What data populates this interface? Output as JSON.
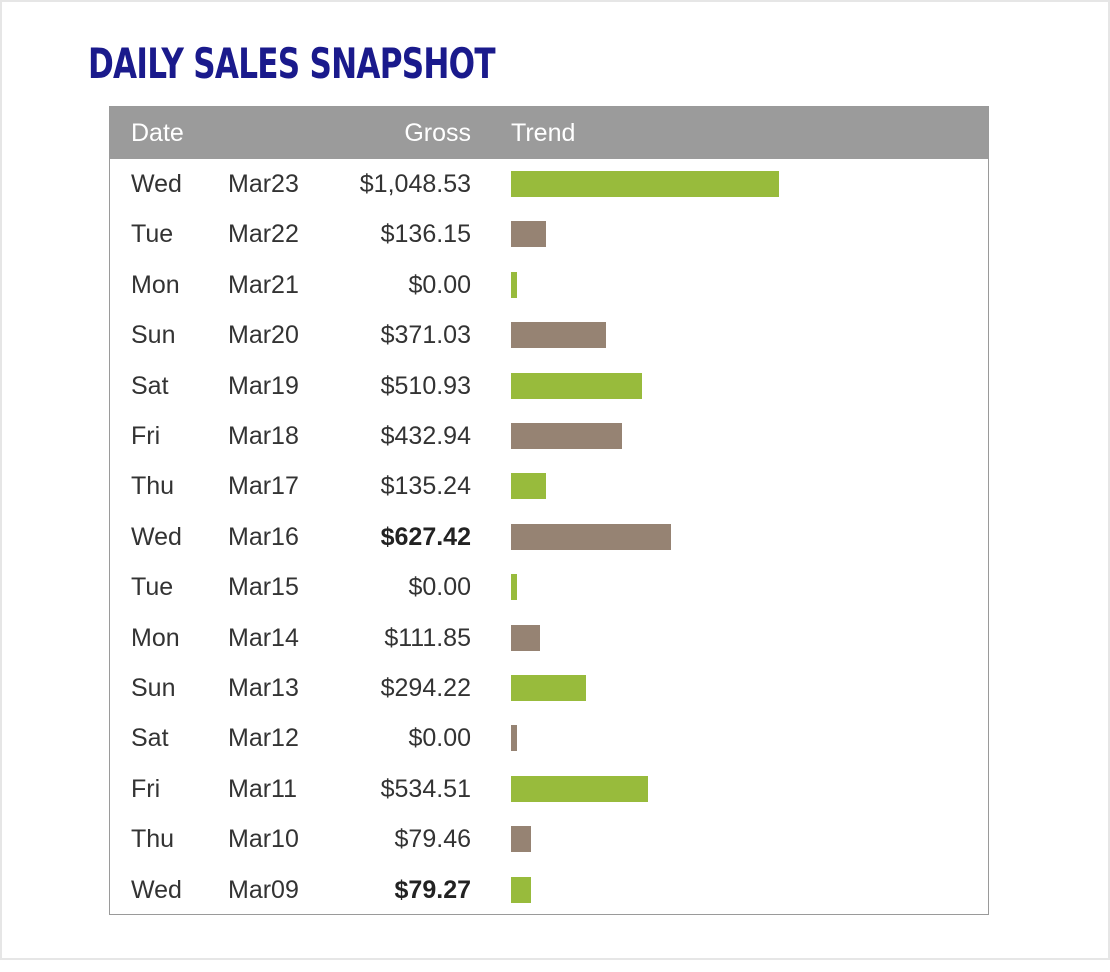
{
  "title": "DAILY SALES SNAPSHOT",
  "headers": {
    "date": "Date",
    "gross": "Gross",
    "trend": "Trend"
  },
  "colors": {
    "title": "#1a1a8c",
    "header_bg": "#9b9b9b",
    "bar_green": "#98bb3c",
    "bar_taupe": "#968373"
  },
  "rows": [
    {
      "day": "Wed",
      "date": "Mar23",
      "gross": "$1,048.53"
    },
    {
      "day": "Tue",
      "date": "Mar22",
      "gross": "$136.15"
    },
    {
      "day": "Mon",
      "date": "Mar21",
      "gross": "$0.00"
    },
    {
      "day": "Sun",
      "date": "Mar20",
      "gross": "$371.03"
    },
    {
      "day": "Sat",
      "date": "Mar19",
      "gross": "$510.93"
    },
    {
      "day": "Fri",
      "date": "Mar18",
      "gross": "$432.94"
    },
    {
      "day": "Thu",
      "date": "Mar17",
      "gross": "$135.24"
    },
    {
      "day": "Wed",
      "date": "Mar16",
      "gross": "$627.42"
    },
    {
      "day": "Tue",
      "date": "Mar15",
      "gross": "$0.00"
    },
    {
      "day": "Mon",
      "date": "Mar14",
      "gross": "$111.85"
    },
    {
      "day": "Sun",
      "date": "Mar13",
      "gross": "$294.22"
    },
    {
      "day": "Sat",
      "date": "Mar12",
      "gross": "$0.00"
    },
    {
      "day": "Fri",
      "date": "Mar11",
      "gross": "$534.51"
    },
    {
      "day": "Thu",
      "date": "Mar10",
      "gross": "$79.46"
    },
    {
      "day": "Wed",
      "date": "Mar09",
      "gross": "$79.27"
    }
  ],
  "chart_data": {
    "type": "bar",
    "title": "DAILY SALES SNAPSHOT",
    "orientation": "horizontal",
    "categories": [
      "Wed Mar23",
      "Tue Mar22",
      "Mon Mar21",
      "Sun Mar20",
      "Sat Mar19",
      "Fri Mar18",
      "Thu Mar17",
      "Wed Mar16",
      "Tue Mar15",
      "Mon Mar14",
      "Sun Mar13",
      "Sat Mar12",
      "Fri Mar11",
      "Thu Mar10",
      "Wed Mar09"
    ],
    "values": [
      1048.53,
      136.15,
      0.0,
      371.03,
      510.93,
      432.94,
      135.24,
      627.42,
      0.0,
      111.85,
      294.22,
      0.0,
      534.51,
      79.46,
      79.27
    ],
    "bar_colors": [
      "green",
      "taupe",
      "green",
      "taupe",
      "green",
      "taupe",
      "green",
      "taupe",
      "green",
      "taupe",
      "green",
      "taupe",
      "green",
      "taupe",
      "green"
    ],
    "emphasized_rows": [
      "Mar16",
      "Mar09"
    ],
    "xlim": [
      0,
      1048.53
    ],
    "grid": false,
    "legend": "none"
  }
}
